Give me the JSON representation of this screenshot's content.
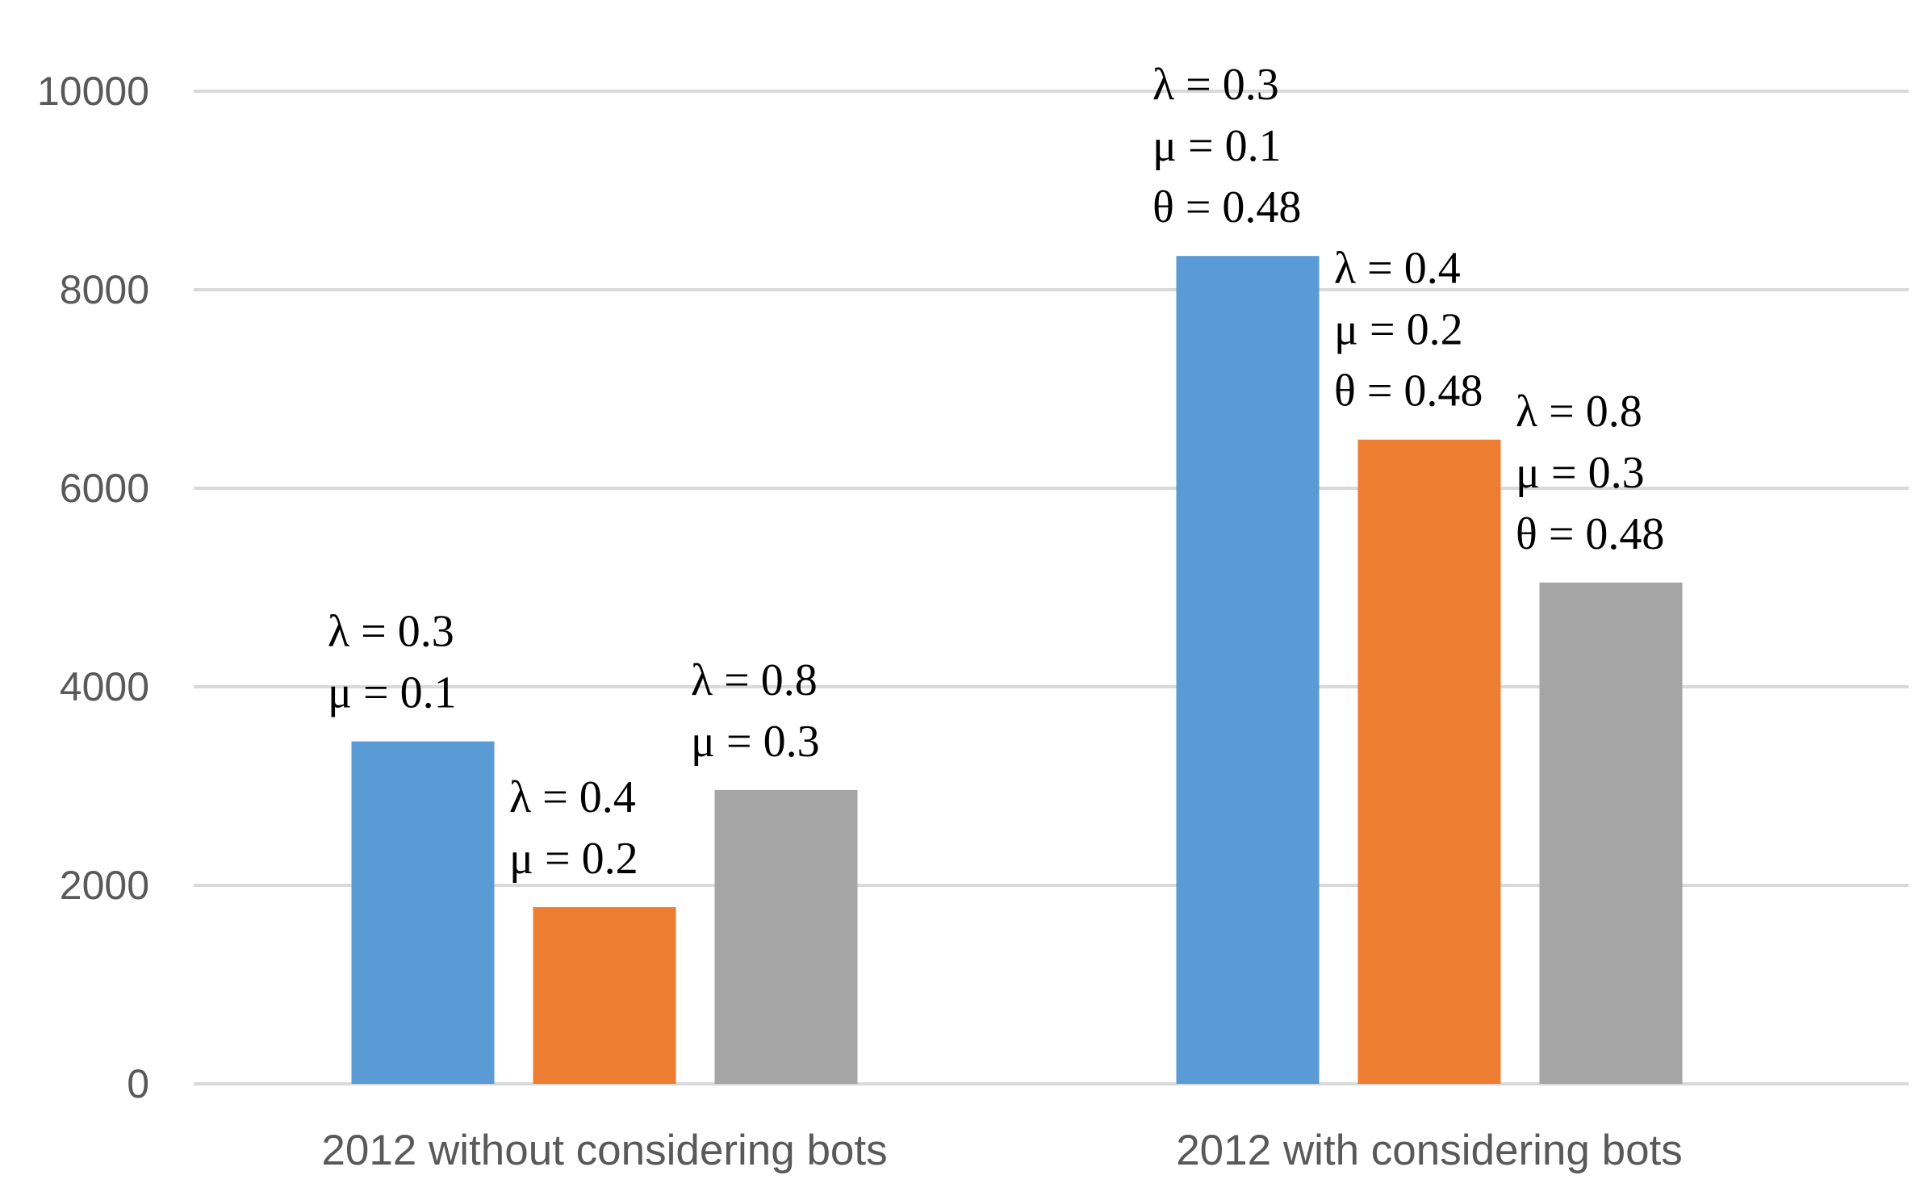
{
  "chart_data": {
    "type": "bar",
    "title": "",
    "xlabel": "",
    "ylabel": "",
    "ylim": [
      0,
      10000
    ],
    "yticks": [
      0,
      2000,
      4000,
      6000,
      8000,
      10000
    ],
    "grid": true,
    "legend": "none",
    "categories": [
      "2012 without considering bots",
      "2012 with considering bots"
    ],
    "series": [
      {
        "color": "#5b9bd5",
        "values": [
          3450,
          8340
        ]
      },
      {
        "color": "#ed7d31",
        "values": [
          1780,
          6490
        ]
      },
      {
        "color": "#a5a5a5",
        "values": [
          2960,
          5050
        ]
      }
    ],
    "annotations": [
      {
        "category": 0,
        "series": 0,
        "lines": [
          "λ = 0.3",
          "μ = 0.1"
        ]
      },
      {
        "category": 0,
        "series": 1,
        "lines": [
          "λ = 0.4",
          "μ = 0.2"
        ]
      },
      {
        "category": 0,
        "series": 2,
        "lines": [
          "λ = 0.8",
          "μ = 0.3"
        ]
      },
      {
        "category": 1,
        "series": 0,
        "lines": [
          "λ = 0.3",
          "μ = 0.1",
          "θ = 0.48"
        ]
      },
      {
        "category": 1,
        "series": 1,
        "lines": [
          "λ = 0.4",
          "μ = 0.2",
          "θ = 0.48"
        ]
      },
      {
        "category": 1,
        "series": 2,
        "lines": [
          "λ = 0.8",
          "μ = 0.3",
          "θ = 0.48"
        ]
      }
    ]
  }
}
